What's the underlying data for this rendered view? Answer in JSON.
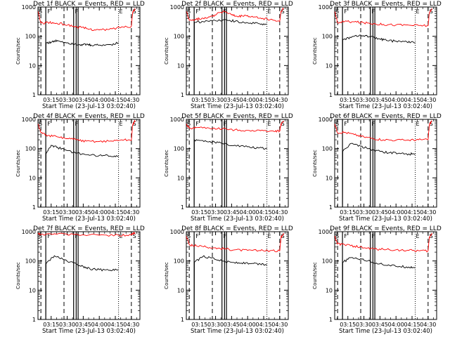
{
  "chart_data": {
    "type": "line",
    "y_scale": "log",
    "ylim": [
      1,
      1000
    ],
    "y_ticks": [
      "1",
      "10",
      "100",
      "1000"
    ],
    "ylabel": "Counts/sec",
    "xlabel": "Start Time (23-Jul-13 03:02:40)",
    "x_ticks": [
      "03:15",
      "03:30",
      "03:45",
      "04:00",
      "04:15",
      "04:30"
    ],
    "xlim": [
      "03:02:40",
      "04:38:00"
    ],
    "grid": false,
    "marker_glyphs": [
      "S",
      "F",
      "F",
      "E",
      "S"
    ],
    "colors": {
      "events": "#000000",
      "lld": "#ff0000",
      "axes": "#000000"
    },
    "panels": [
      {
        "title": "Det 1f BLACK = Events, RED = LLD",
        "events": [
          [
            3.166,
            0
          ],
          [
            3.17,
            60
          ],
          [
            3.25,
            62
          ],
          [
            3.35,
            72
          ],
          [
            3.5,
            60
          ],
          [
            3.62,
            55
          ],
          [
            3.72,
            52
          ],
          [
            3.8,
            52
          ],
          [
            3.87,
            50
          ],
          [
            4.0,
            50
          ],
          [
            4.17,
            52
          ],
          [
            4.3,
            60
          ]
        ],
        "lld": [
          [
            3.045,
            700
          ],
          [
            3.09,
            280
          ],
          [
            3.2,
            300
          ],
          [
            3.3,
            280
          ],
          [
            3.45,
            260
          ],
          [
            3.6,
            220
          ],
          [
            3.72,
            200
          ],
          [
            3.85,
            175
          ],
          [
            4.0,
            165
          ],
          [
            4.15,
            170
          ],
          [
            4.35,
            210
          ],
          [
            4.5,
            220
          ],
          [
            4.52,
            650
          ],
          [
            4.56,
            900
          ]
        ]
      },
      {
        "title": "Det 2f BLACK = Events, RED = LLD",
        "events": [
          [
            3.166,
            0
          ],
          [
            3.17,
            300
          ],
          [
            3.3,
            320
          ],
          [
            3.5,
            340
          ],
          [
            3.72,
            350
          ],
          [
            3.85,
            320
          ],
          [
            4.0,
            290
          ],
          [
            4.17,
            270
          ],
          [
            4.3,
            260
          ]
        ],
        "lld": [
          [
            3.045,
            700
          ],
          [
            3.09,
            350
          ],
          [
            3.2,
            380
          ],
          [
            3.3,
            420
          ],
          [
            3.45,
            480
          ],
          [
            3.55,
            650
          ],
          [
            3.65,
            700
          ],
          [
            3.75,
            540
          ],
          [
            3.85,
            460
          ],
          [
            3.95,
            520
          ],
          [
            4.05,
            460
          ],
          [
            4.2,
            420
          ],
          [
            4.35,
            370
          ],
          [
            4.5,
            320
          ],
          [
            4.52,
            700
          ],
          [
            4.56,
            900
          ]
        ]
      },
      {
        "title": "Det 3f BLACK = Events, RED = LLD",
        "events": [
          [
            3.166,
            0
          ],
          [
            3.17,
            80
          ],
          [
            3.3,
            90
          ],
          [
            3.45,
            110
          ],
          [
            3.6,
            95
          ],
          [
            3.75,
            80
          ],
          [
            3.85,
            72
          ],
          [
            4.0,
            68
          ],
          [
            4.17,
            64
          ],
          [
            4.3,
            60
          ]
        ],
        "lld": [
          [
            3.045,
            700
          ],
          [
            3.09,
            290
          ],
          [
            3.2,
            320
          ],
          [
            3.35,
            310
          ],
          [
            3.5,
            290
          ],
          [
            3.65,
            270
          ],
          [
            3.8,
            255
          ],
          [
            4.0,
            245
          ],
          [
            4.2,
            240
          ],
          [
            4.35,
            235
          ],
          [
            4.5,
            230
          ],
          [
            4.52,
            650
          ],
          [
            4.56,
            900
          ]
        ]
      },
      {
        "title": "Det 4f BLACK = Events, RED = LLD",
        "events": [
          [
            3.166,
            0
          ],
          [
            3.17,
            70
          ],
          [
            3.25,
            130
          ],
          [
            3.35,
            110
          ],
          [
            3.5,
            85
          ],
          [
            3.65,
            70
          ],
          [
            3.8,
            62
          ],
          [
            4.0,
            58
          ],
          [
            4.17,
            56
          ],
          [
            4.3,
            55
          ]
        ],
        "lld": [
          [
            3.045,
            700
          ],
          [
            3.09,
            350
          ],
          [
            3.2,
            280
          ],
          [
            3.35,
            250
          ],
          [
            3.5,
            220
          ],
          [
            3.65,
            200
          ],
          [
            3.8,
            180
          ],
          [
            4.0,
            175
          ],
          [
            4.2,
            180
          ],
          [
            4.35,
            200
          ],
          [
            4.5,
            190
          ],
          [
            4.52,
            650
          ],
          [
            4.56,
            900
          ]
        ]
      },
      {
        "title": "Det 5f BLACK = Events, RED = LLD",
        "events": [
          [
            3.166,
            0
          ],
          [
            3.17,
            200
          ],
          [
            3.3,
            190
          ],
          [
            3.45,
            170
          ],
          [
            3.6,
            150
          ],
          [
            3.8,
            130
          ],
          [
            4.0,
            115
          ],
          [
            4.17,
            105
          ],
          [
            4.3,
            100
          ]
        ],
        "lld": [
          [
            3.045,
            700
          ],
          [
            3.09,
            500
          ],
          [
            3.2,
            520
          ],
          [
            3.4,
            500
          ],
          [
            3.6,
            470
          ],
          [
            3.8,
            440
          ],
          [
            4.0,
            420
          ],
          [
            4.2,
            410
          ],
          [
            4.4,
            400
          ],
          [
            4.5,
            400
          ],
          [
            4.52,
            700
          ],
          [
            4.56,
            900
          ]
        ]
      },
      {
        "title": "Det 6f BLACK = Events, RED = LLD",
        "events": [
          [
            3.166,
            0
          ],
          [
            3.17,
            80
          ],
          [
            3.3,
            150
          ],
          [
            3.45,
            120
          ],
          [
            3.6,
            95
          ],
          [
            3.75,
            80
          ],
          [
            3.9,
            72
          ],
          [
            4.05,
            70
          ],
          [
            4.2,
            66
          ],
          [
            4.3,
            65
          ]
        ],
        "lld": [
          [
            3.045,
            700
          ],
          [
            3.09,
            350
          ],
          [
            3.2,
            360
          ],
          [
            3.35,
            300
          ],
          [
            3.5,
            250
          ],
          [
            3.65,
            220
          ],
          [
            3.8,
            200
          ],
          [
            4.0,
            195
          ],
          [
            4.2,
            195
          ],
          [
            4.35,
            200
          ],
          [
            4.5,
            200
          ],
          [
            4.52,
            650
          ],
          [
            4.56,
            900
          ]
        ]
      },
      {
        "title": "Det 7f BLACK = Events, RED = LLD",
        "events": [
          [
            3.166,
            0
          ],
          [
            3.17,
            80
          ],
          [
            3.3,
            150
          ],
          [
            3.45,
            110
          ],
          [
            3.6,
            85
          ],
          [
            3.75,
            65
          ],
          [
            3.85,
            55
          ],
          [
            4.0,
            50
          ],
          [
            4.17,
            48
          ],
          [
            4.3,
            50
          ]
        ],
        "lld": [
          [
            3.045,
            900
          ],
          [
            3.09,
            800
          ],
          [
            3.3,
            850
          ],
          [
            3.6,
            800
          ],
          [
            4.0,
            760
          ],
          [
            4.3,
            760
          ],
          [
            4.5,
            780
          ],
          [
            4.52,
            850
          ],
          [
            4.56,
            900
          ]
        ]
      },
      {
        "title": "Det 8f BLACK = Events, RED = LLD",
        "events": [
          [
            3.166,
            0
          ],
          [
            3.17,
            90
          ],
          [
            3.3,
            140
          ],
          [
            3.45,
            130
          ],
          [
            3.6,
            100
          ],
          [
            3.75,
            90
          ],
          [
            3.9,
            85
          ],
          [
            4.05,
            80
          ],
          [
            4.2,
            78
          ],
          [
            4.3,
            75
          ]
        ],
        "lld": [
          [
            3.045,
            700
          ],
          [
            3.09,
            360
          ],
          [
            3.2,
            330
          ],
          [
            3.35,
            300
          ],
          [
            3.5,
            280
          ],
          [
            3.65,
            260
          ],
          [
            3.8,
            240
          ],
          [
            4.0,
            230
          ],
          [
            4.2,
            225
          ],
          [
            4.35,
            225
          ],
          [
            4.5,
            220
          ],
          [
            4.52,
            650
          ],
          [
            4.56,
            900
          ]
        ]
      },
      {
        "title": "Det 9f BLACK = Events, RED = LLD",
        "events": [
          [
            3.166,
            0
          ],
          [
            3.17,
            90
          ],
          [
            3.3,
            130
          ],
          [
            3.45,
            120
          ],
          [
            3.6,
            95
          ],
          [
            3.75,
            80
          ],
          [
            3.9,
            70
          ],
          [
            4.05,
            65
          ],
          [
            4.2,
            62
          ],
          [
            4.3,
            60
          ]
        ],
        "lld": [
          [
            3.045,
            700
          ],
          [
            3.09,
            380
          ],
          [
            3.2,
            360
          ],
          [
            3.35,
            320
          ],
          [
            3.5,
            280
          ],
          [
            3.65,
            260
          ],
          [
            3.8,
            250
          ],
          [
            4.0,
            240
          ],
          [
            4.2,
            230
          ],
          [
            4.35,
            225
          ],
          [
            4.5,
            220
          ],
          [
            4.52,
            650
          ],
          [
            4.56,
            900
          ]
        ]
      }
    ]
  }
}
